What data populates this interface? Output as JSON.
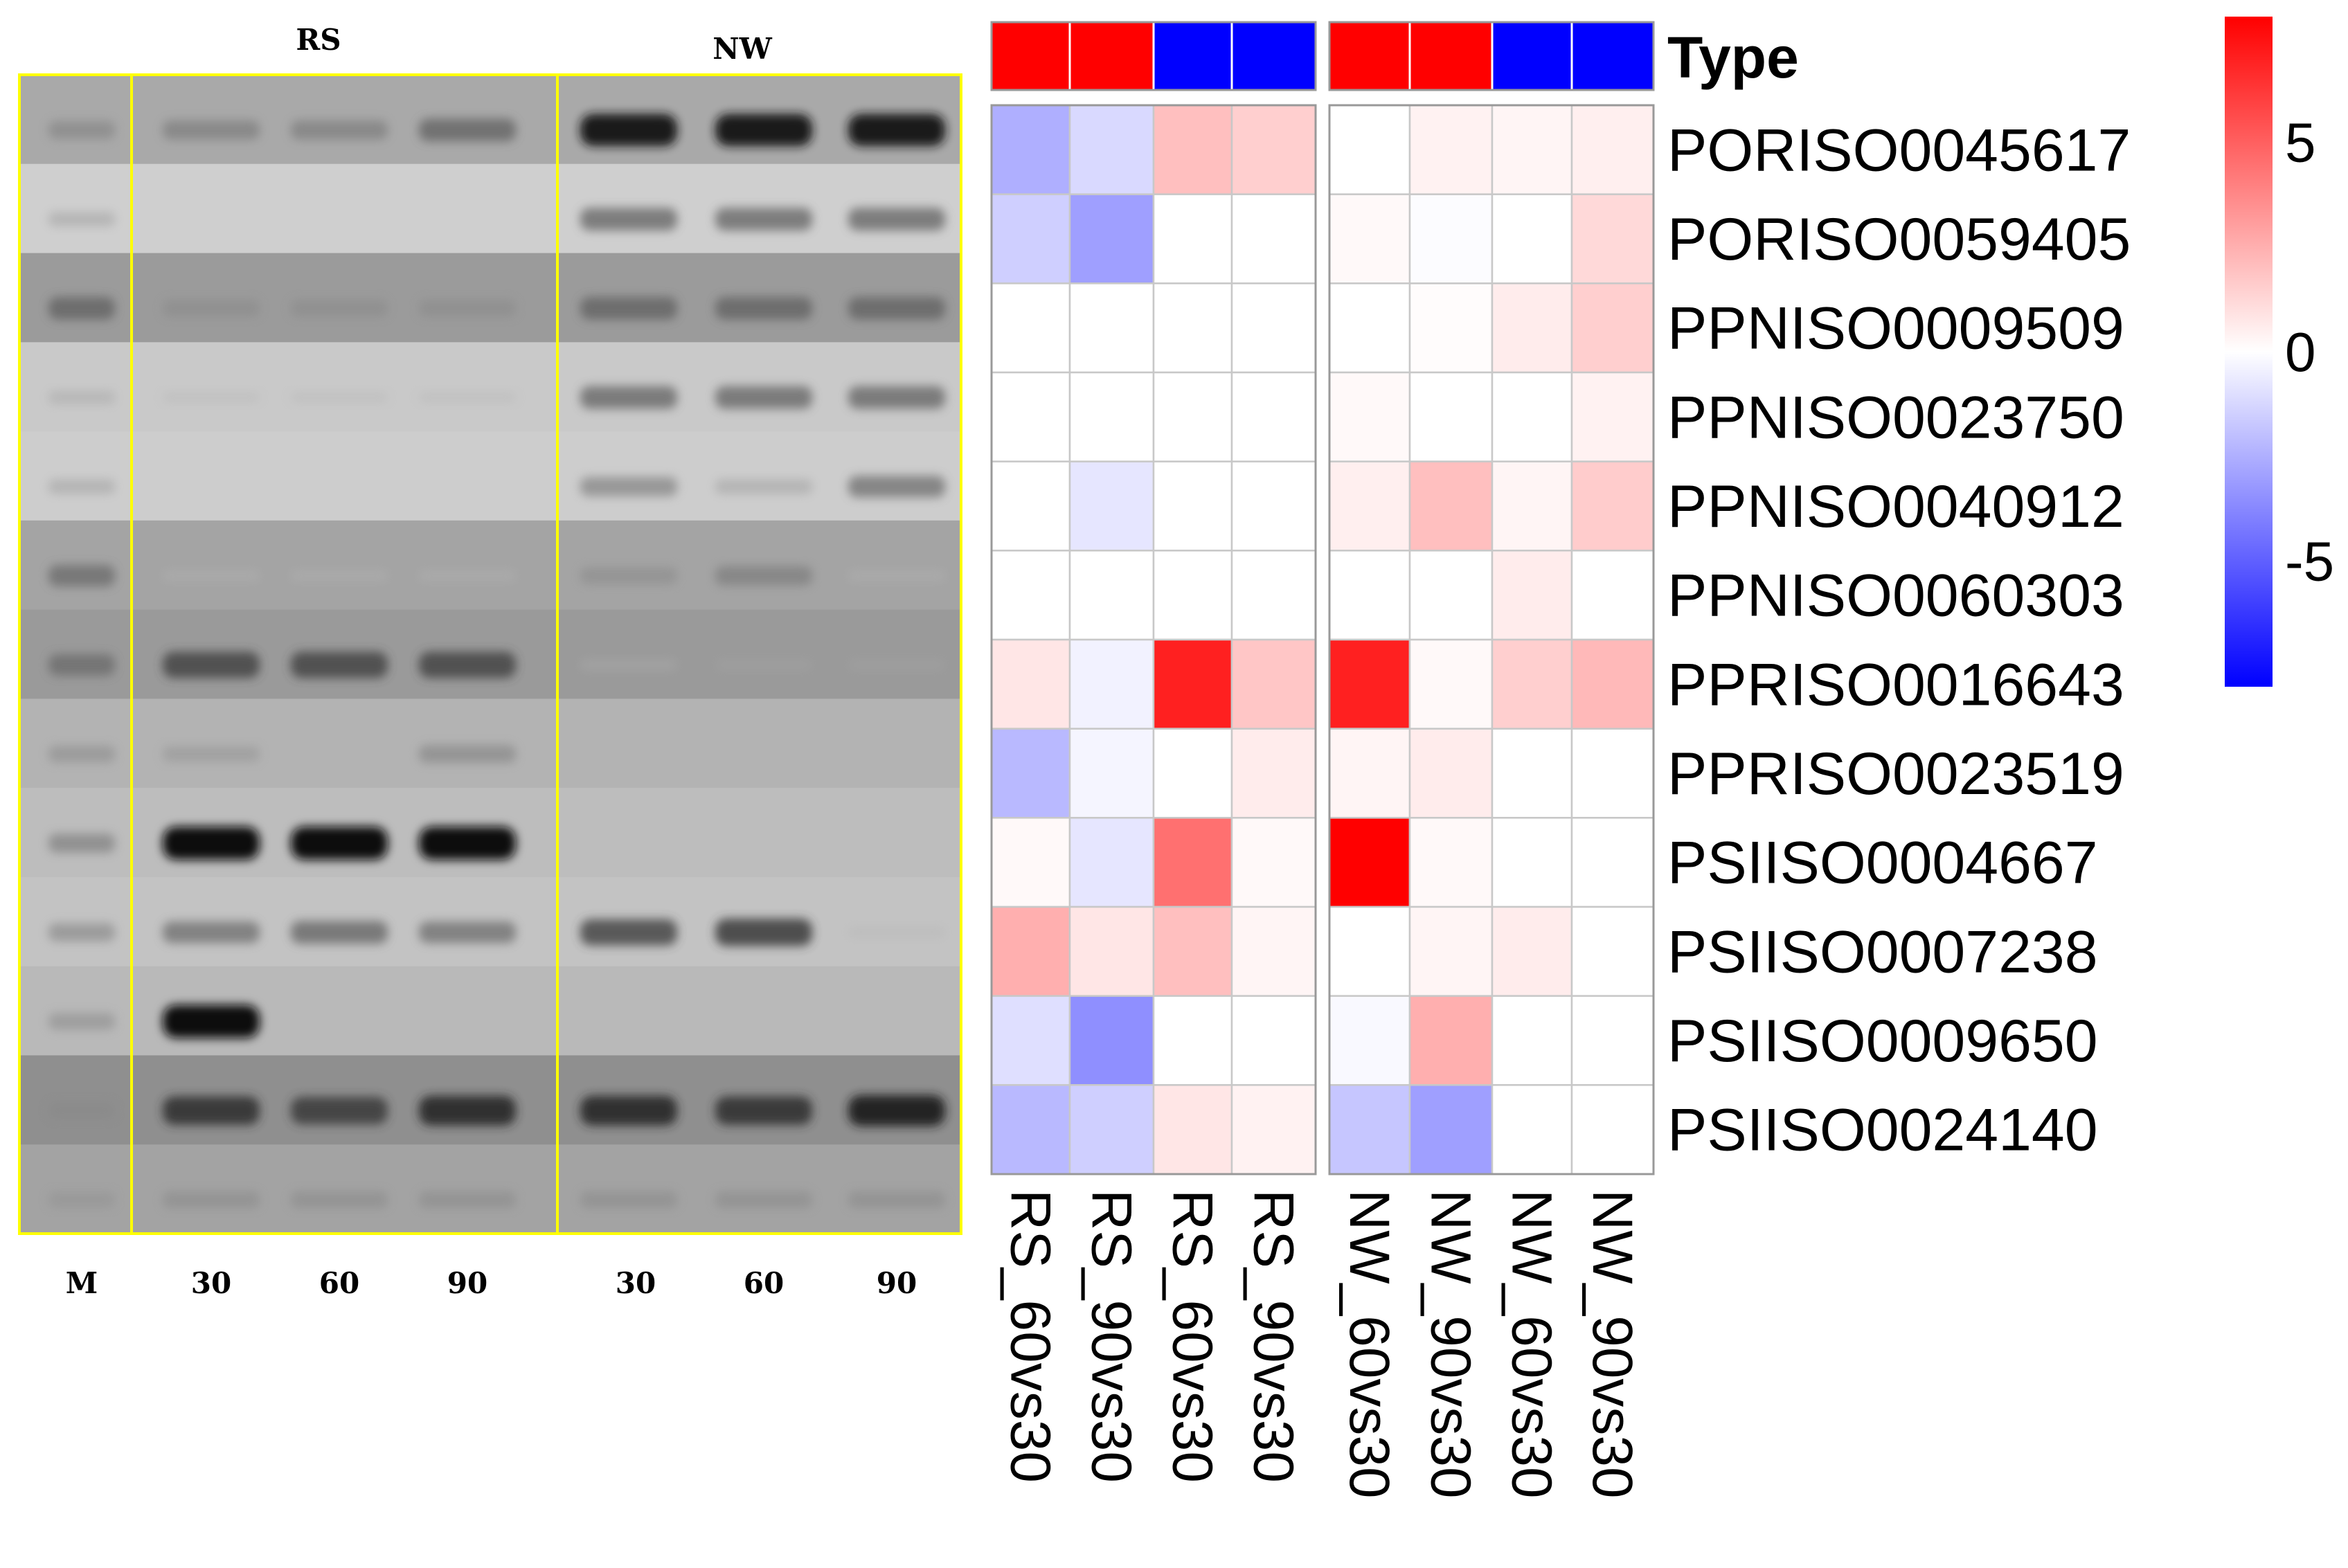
{
  "gel": {
    "group_labels": [
      "RS",
      "NW"
    ],
    "lane_labels": [
      "M",
      "30",
      "60",
      "90",
      "30",
      "60",
      "90"
    ],
    "frame_color": "#ffff00",
    "band_intensity": [
      [
        0.35,
        0.4,
        0.4,
        0.55,
        0.95,
        0.95,
        0.95
      ],
      [
        0.2,
        0.0,
        0.0,
        0.0,
        0.55,
        0.55,
        0.55
      ],
      [
        0.55,
        0.3,
        0.3,
        0.3,
        0.55,
        0.55,
        0.55
      ],
      [
        0.15,
        0.05,
        0.05,
        0.05,
        0.55,
        0.55,
        0.55
      ],
      [
        0.2,
        0.0,
        0.0,
        0.0,
        0.4,
        0.2,
        0.5
      ],
      [
        0.5,
        0.05,
        0.05,
        0.05,
        0.3,
        0.4,
        0.05
      ],
      [
        0.5,
        0.7,
        0.7,
        0.7,
        0.1,
        0.15,
        0.15
      ],
      [
        0.3,
        0.25,
        0.0,
        0.35,
        0.0,
        0.0,
        0.0
      ],
      [
        0.4,
        1.0,
        1.0,
        1.0,
        0.0,
        0.0,
        0.0
      ],
      [
        0.35,
        0.5,
        0.55,
        0.5,
        0.7,
        0.75,
        0.05
      ],
      [
        0.3,
        1.0,
        0.0,
        0.0,
        0.0,
        0.0,
        0.0
      ],
      [
        0.3,
        0.8,
        0.75,
        0.85,
        0.85,
        0.8,
        0.9
      ],
      [
        0.25,
        0.3,
        0.3,
        0.3,
        0.3,
        0.3,
        0.3
      ]
    ]
  },
  "chart_data": {
    "type": "heatmap",
    "type_annotation_label": "Type",
    "columns": [
      "RS_60vs30",
      "RS_90vs30",
      "RS_60vs30",
      "RS_90vs30",
      "NW_60vs30",
      "NW_90vs30",
      "NW_60vs30",
      "NW_90vs30"
    ],
    "column_type": [
      "red",
      "red",
      "blue",
      "blue",
      "red",
      "red",
      "blue",
      "blue"
    ],
    "rows": [
      "PORISO0045617",
      "PORISO0059405",
      "PPNISO0009509",
      "PPNISO0023750",
      "PPNISO0040912",
      "PPNISO0060303",
      "PPRISO0016643",
      "PPRISO0023519",
      "PSIISO0004667",
      "PSIISO0007238",
      "PSIISO0009650",
      "PSIISO0024140"
    ],
    "values": [
      [
        -2.5,
        -1.2,
        2.0,
        1.5,
        0.0,
        0.4,
        0.3,
        0.5
      ],
      [
        -1.5,
        -3.0,
        0.0,
        0.0,
        0.2,
        -0.1,
        0.0,
        1.2
      ],
      [
        0.0,
        0.0,
        0.0,
        0.0,
        0.0,
        0.1,
        0.6,
        1.5
      ],
      [
        0.0,
        0.0,
        0.0,
        0.0,
        0.2,
        0.0,
        0.0,
        0.4
      ],
      [
        0.0,
        -0.8,
        0.0,
        0.0,
        0.5,
        2.0,
        0.3,
        1.6
      ],
      [
        0.0,
        0.0,
        0.0,
        0.0,
        0.0,
        0.0,
        0.6,
        0.0
      ],
      [
        0.8,
        -0.4,
        7.0,
        1.8,
        7.0,
        0.2,
        1.5,
        2.2
      ],
      [
        -2.2,
        -0.3,
        0.0,
        0.6,
        0.3,
        0.6,
        0.0,
        0.0
      ],
      [
        0.2,
        -0.8,
        4.5,
        0.2,
        8.0,
        0.2,
        0.0,
        0.0
      ],
      [
        2.5,
        0.8,
        2.0,
        0.3,
        0.0,
        0.3,
        0.6,
        0.0
      ],
      [
        -1.0,
        -3.5,
        0.0,
        0.0,
        -0.2,
        2.5,
        0.0,
        0.0
      ],
      [
        -2.2,
        -1.5,
        0.8,
        0.4,
        -1.8,
        -3.0,
        0.0,
        0.0
      ]
    ],
    "color_scale": {
      "min": -8,
      "max": 8,
      "low_color": "#0000ff",
      "mid_color": "#ffffff",
      "high_color": "#ff0000",
      "ticks": [
        5,
        0,
        -5
      ],
      "tick_labels": [
        "5",
        "0",
        "-5"
      ]
    },
    "type_colors": {
      "red": "#ff0000",
      "blue": "#0000ff"
    }
  }
}
